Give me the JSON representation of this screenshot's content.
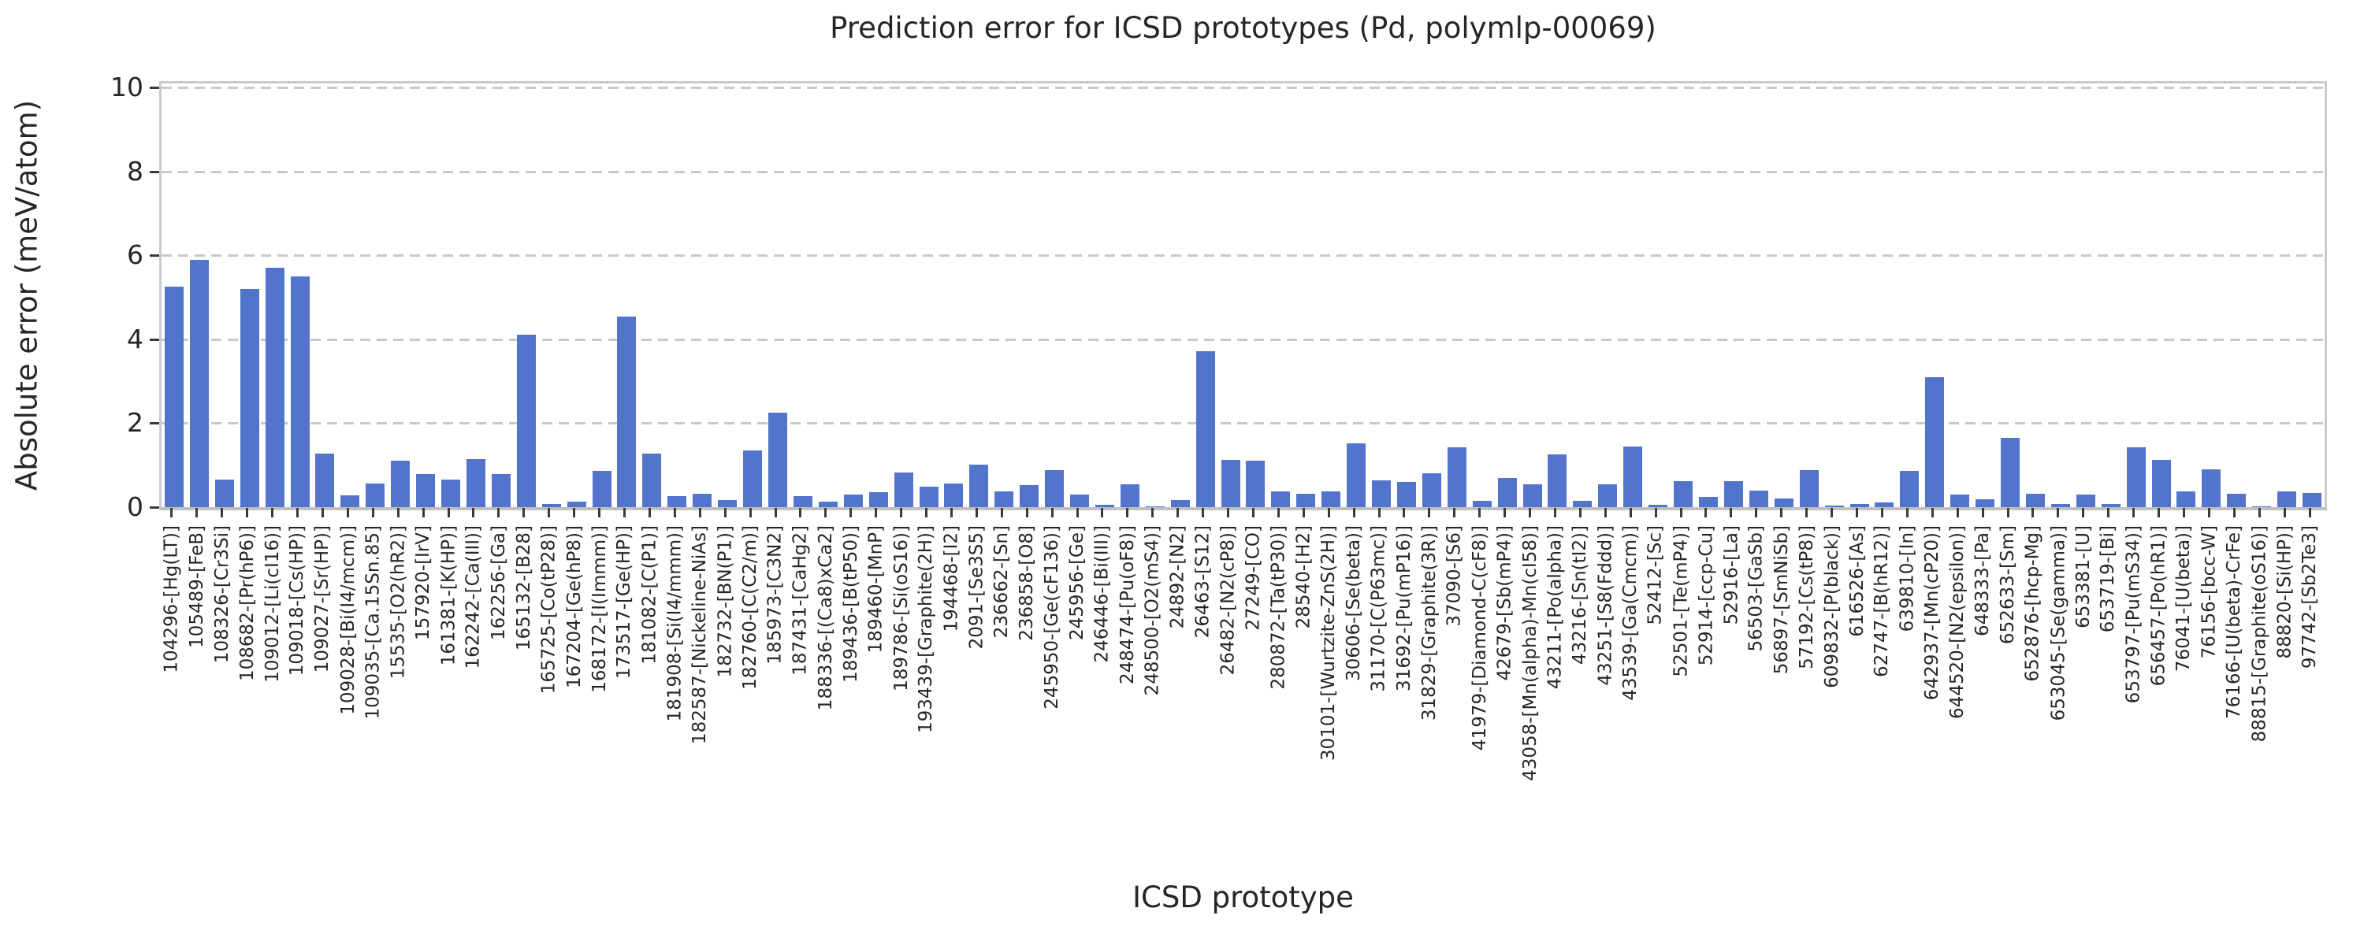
{
  "figure": {
    "title": "Prediction error for ICSD prototypes (Pd, polymlp-00069)",
    "xlabel": "ICSD prototype",
    "ylabel": "Absolute error (meV/atom)"
  },
  "chart_data": {
    "type": "bar",
    "title": "Prediction error for ICSD prototypes (Pd, polymlp-00069)",
    "xlabel": "ICSD prototype",
    "ylabel": "Absolute error (meV/atom)",
    "ylim": [
      0,
      10.1
    ],
    "yticks": [
      0,
      2,
      4,
      6,
      8,
      10
    ],
    "grid": "horizontal-dashed",
    "legend_position": "none",
    "bar_color": "#5274cc",
    "grid_color": "#c9c9c9",
    "spine_color": "#cbcbcb",
    "text_color": "#262626",
    "categories": [
      "104296-[Hg(LT)]",
      "105489-[FeB]",
      "108326-[Cr3Si]",
      "108682-[Pr(hP6)]",
      "109012-[Li(cI16)]",
      "109018-[Cs(HP)]",
      "109027-[Sr(HP)]",
      "109028-[Bi(I4/mcm)]",
      "109035-[Ca.15Sn.85]",
      "15535-[O2(hR2)]",
      "157920-[IrV]",
      "161381-[K(HP)]",
      "162242-[Ca(III)]",
      "162256-[Ga]",
      "165132-[B28]",
      "165725-[Co(tP28)]",
      "167204-[Ge(hP8)]",
      "168172-[I(Immm)]",
      "173517-[Ge(HP)]",
      "181082-[C(P1)]",
      "181908-[Si(I4/mmm)]",
      "182587-[Nickeline-NiAs]",
      "182732-[BN(P1)]",
      "182760-[C(C2/m)]",
      "185973-[C3N2]",
      "187431-[CaHg2]",
      "188336-[(Ca8)xCa2]",
      "189436-[B(tP50)]",
      "189460-[MnP]",
      "189786-[Si(oS16)]",
      "193439-[Graphite(2H)]",
      "194468-[I2]",
      "2091-[Se3S5]",
      "236662-[Sn]",
      "236858-[O8]",
      "245950-[Ge(cF136)]",
      "245956-[Ge]",
      "246446-[Bi(III)]",
      "248474-[Pu(oF8)]",
      "248500-[O2(mS4)]",
      "24892-[N2]",
      "26463-[S12]",
      "26482-[N2(cP8)]",
      "27249-[CO]",
      "280872-[Ta(tP30)]",
      "28540-[H2]",
      "30101-[Wurtzite-ZnS(2H)]",
      "30606-[Se(beta)]",
      "31170-[C(P63mc)]",
      "31692-[Pu(mP16)]",
      "31829-[Graphite(3R)]",
      "37090-[S6]",
      "41979-[Diamond-C(cF8)]",
      "42679-[Sb(mP4)]",
      "43058-[Mn(alpha)-Mn(cI58)]",
      "43211-[Po(alpha)]",
      "43216-[Sn(tI2)]",
      "43251-[S8(Fddd)]",
      "43539-[Ga(Cmcm)]",
      "52412-[Sc]",
      "52501-[Te(mP4)]",
      "52914-[ccp-Cu]",
      "52916-[La]",
      "56503-[GaSb]",
      "56897-[SmNiSb]",
      "57192-[Cs(tP8)]",
      "609832-[P(black)]",
      "616526-[As]",
      "62747-[B(hR12)]",
      "639810-[In]",
      "642937-[Mn(cP20)]",
      "644520-[N2(epsilon)]",
      "648333-[Pa]",
      "652633-[Sm]",
      "652876-[hcp-Mg]",
      "653045-[Se(gamma)]",
      "653381-[U]",
      "653719-[Bi]",
      "653797-[Pu(mS34)]",
      "656457-[Po(hR1)]",
      "76041-[U(beta)]",
      "76156-[bcc-W]",
      "76166-[U(beta)-CrFe]",
      "88815-[Graphite(oS16)]",
      "88820-[Si(HP)]",
      "97742-[Sb2Te3]"
    ],
    "values": [
      5.25,
      5.9,
      0.65,
      5.2,
      5.7,
      5.5,
      1.28,
      0.28,
      0.56,
      1.1,
      0.79,
      0.65,
      1.14,
      0.79,
      4.12,
      0.07,
      0.13,
      0.87,
      4.55,
      1.27,
      0.27,
      0.32,
      0.16,
      1.35,
      2.26,
      0.26,
      0.14,
      0.31,
      0.35,
      0.83,
      0.48,
      0.57,
      1.02,
      0.37,
      0.53,
      0.88,
      0.3,
      0.06,
      0.54,
      0.02,
      0.17,
      3.72,
      1.12,
      1.11,
      0.37,
      0.32,
      0.38,
      1.52,
      0.63,
      0.6,
      0.81,
      1.43,
      0.15,
      0.7,
      0.55,
      1.25,
      0.15,
      0.54,
      1.44,
      0.06,
      0.62,
      0.25,
      0.62,
      0.4,
      0.21,
      0.88,
      0.04,
      0.07,
      0.12,
      0.86,
      3.1,
      0.31,
      0.18,
      1.66,
      0.32,
      0.08,
      0.3,
      0.08,
      1.42,
      1.13,
      0.37,
      0.91,
      0.32,
      0.02,
      0.37,
      0.33
    ]
  }
}
